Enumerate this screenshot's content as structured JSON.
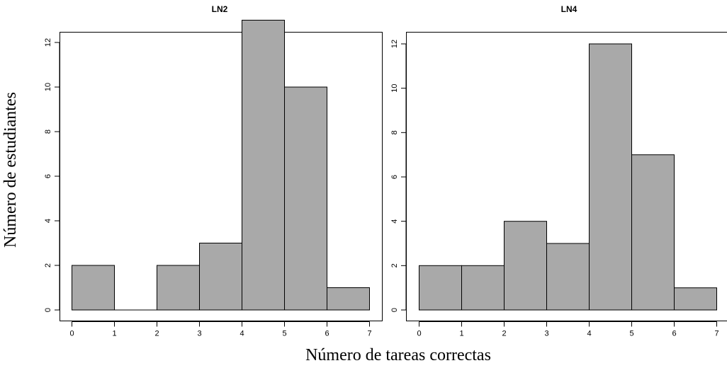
{
  "colors": {
    "bar_fill": "#a9a9a9",
    "bar_stroke": "#000000",
    "frame": "#000000"
  },
  "shared_labels": {
    "xlabel": "Número de tareas correctas",
    "ylabel": "Número de estudiantes"
  },
  "chart_data": [
    {
      "type": "bar",
      "title": "LN2",
      "bins": [
        [
          0,
          1
        ],
        [
          1,
          2
        ],
        [
          2,
          3
        ],
        [
          3,
          4
        ],
        [
          4,
          5
        ],
        [
          5,
          6
        ],
        [
          6,
          7
        ]
      ],
      "values": [
        2,
        0,
        2,
        3,
        13,
        10,
        1
      ],
      "xlim": [
        -0.28,
        7.28
      ],
      "ylim": [
        0,
        13.52
      ],
      "xticks": [
        0,
        1,
        2,
        3,
        4,
        5,
        6,
        7
      ],
      "yticks": [
        0,
        2,
        4,
        6,
        8,
        10,
        12
      ],
      "grid": false,
      "legend": false
    },
    {
      "type": "bar",
      "title": "LN4",
      "bins": [
        [
          0,
          1
        ],
        [
          1,
          2
        ],
        [
          2,
          3
        ],
        [
          3,
          4
        ],
        [
          4,
          5
        ],
        [
          5,
          6
        ],
        [
          6,
          7
        ]
      ],
      "values": [
        2,
        2,
        4,
        3,
        12,
        7,
        1
      ],
      "xlim": [
        -0.28,
        7.28
      ],
      "ylim": [
        0,
        12.48
      ],
      "xticks": [
        0,
        1,
        2,
        3,
        4,
        5,
        6,
        7
      ],
      "yticks": [
        0,
        2,
        4,
        6,
        8,
        10,
        12
      ],
      "grid": false,
      "legend": false
    }
  ]
}
